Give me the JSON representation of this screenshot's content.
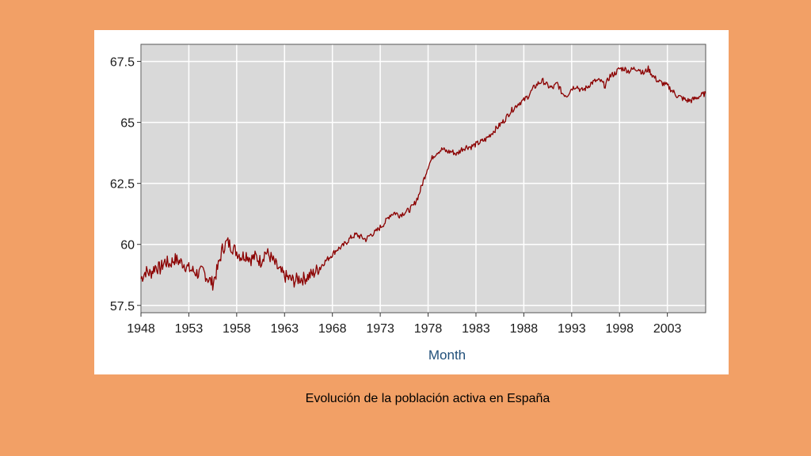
{
  "caption": "Evolución de la población activa en España",
  "chart_data": {
    "type": "line",
    "title": "",
    "xlabel": "Month",
    "ylabel": "",
    "xlim": [
      1948,
      2007
    ],
    "ylim": [
      57.2,
      68.2
    ],
    "x_ticks": [
      1948,
      1953,
      1958,
      1963,
      1968,
      1973,
      1978,
      1983,
      1988,
      1993,
      1998,
      2003
    ],
    "x_tick_labels": [
      "1948",
      "1953",
      "1958",
      "1963",
      "1968",
      "1973",
      "1978",
      "1983",
      "1988",
      "1993",
      "1998",
      "2003"
    ],
    "y_ticks": [
      57.5,
      60,
      62.5,
      65,
      67.5
    ],
    "y_tick_labels": [
      "57.5",
      "60",
      "62.5",
      "65",
      "67.5"
    ],
    "grid": true,
    "legend": "none",
    "colors": {
      "line": "#8B0000",
      "plot_background": "#D9D9D9",
      "grid": "#FFFFFF",
      "axis_title": "#1F4E79"
    },
    "series": [
      {
        "x": [
          1948.0,
          1948.5,
          1949.0,
          1949.5,
          1950.0,
          1950.5,
          1951.0,
          1951.5,
          1952.0,
          1952.5,
          1953.0,
          1953.5,
          1954.0,
          1954.5,
          1955.0,
          1955.5,
          1956.0,
          1956.5,
          1957.0,
          1957.5,
          1958.0,
          1958.5,
          1959.0,
          1959.5,
          1960.0,
          1960.5,
          1961.0,
          1961.5,
          1962.0,
          1962.5,
          1963.0,
          1963.5,
          1964.0,
          1964.5,
          1965.0,
          1965.5,
          1966.0,
          1966.5,
          1967.0,
          1967.5,
          1968.0,
          1968.5,
          1969.0,
          1969.5,
          1970.0,
          1970.5,
          1971.0,
          1971.5,
          1972.0,
          1972.5,
          1973.0,
          1973.5,
          1974.0,
          1974.5,
          1975.0,
          1975.5,
          1976.0,
          1976.5,
          1977.0,
          1977.5,
          1978.0,
          1978.5,
          1979.0,
          1979.5,
          1980.0,
          1980.5,
          1981.0,
          1981.5,
          1982.0,
          1982.5,
          1983.0,
          1983.5,
          1984.0,
          1984.5,
          1985.0,
          1985.5,
          1986.0,
          1986.5,
          1987.0,
          1987.5,
          1988.0,
          1988.5,
          1989.0,
          1989.5,
          1990.0,
          1990.5,
          1991.0,
          1991.5,
          1992.0,
          1992.5,
          1993.0,
          1993.5,
          1994.0,
          1994.5,
          1995.0,
          1995.5,
          1996.0,
          1996.5,
          1997.0,
          1997.5,
          1998.0,
          1998.5,
          1999.0,
          1999.5,
          2000.0,
          2000.5,
          2001.0,
          2001.5,
          2002.0,
          2002.5,
          2003.0,
          2003.5,
          2004.0,
          2004.5,
          2005.0,
          2005.5,
          2006.0,
          2006.5,
          2007.0
        ],
        "values": [
          58.6,
          58.9,
          58.8,
          59.1,
          59.0,
          59.3,
          59.2,
          59.4,
          59.3,
          59.2,
          59.0,
          58.9,
          58.8,
          58.9,
          58.6,
          58.4,
          59.0,
          59.8,
          60.1,
          59.9,
          59.7,
          59.5,
          59.6,
          59.4,
          59.5,
          59.3,
          59.7,
          59.5,
          59.2,
          58.9,
          58.7,
          58.6,
          58.5,
          58.6,
          58.6,
          58.7,
          58.8,
          59.0,
          59.2,
          59.4,
          59.6,
          59.8,
          59.9,
          60.1,
          60.3,
          60.4,
          60.3,
          60.2,
          60.4,
          60.5,
          60.7,
          60.9,
          61.2,
          61.3,
          61.2,
          61.3,
          61.4,
          61.6,
          62.0,
          62.6,
          63.2,
          63.6,
          63.8,
          63.9,
          63.8,
          63.8,
          63.7,
          63.9,
          64.0,
          64.0,
          64.1,
          64.2,
          64.3,
          64.5,
          64.7,
          64.9,
          65.1,
          65.4,
          65.6,
          65.8,
          65.9,
          66.1,
          66.4,
          66.6,
          66.7,
          66.5,
          66.4,
          66.6,
          66.2,
          66.1,
          66.4,
          66.5,
          66.3,
          66.4,
          66.6,
          66.7,
          66.7,
          66.5,
          66.9,
          67.0,
          67.2,
          67.2,
          67.1,
          67.2,
          67.2,
          67.0,
          67.2,
          66.9,
          66.7,
          66.6,
          66.5,
          66.3,
          66.1,
          66.0,
          65.9,
          65.9,
          66.0,
          66.1,
          66.2
        ]
      }
    ]
  }
}
